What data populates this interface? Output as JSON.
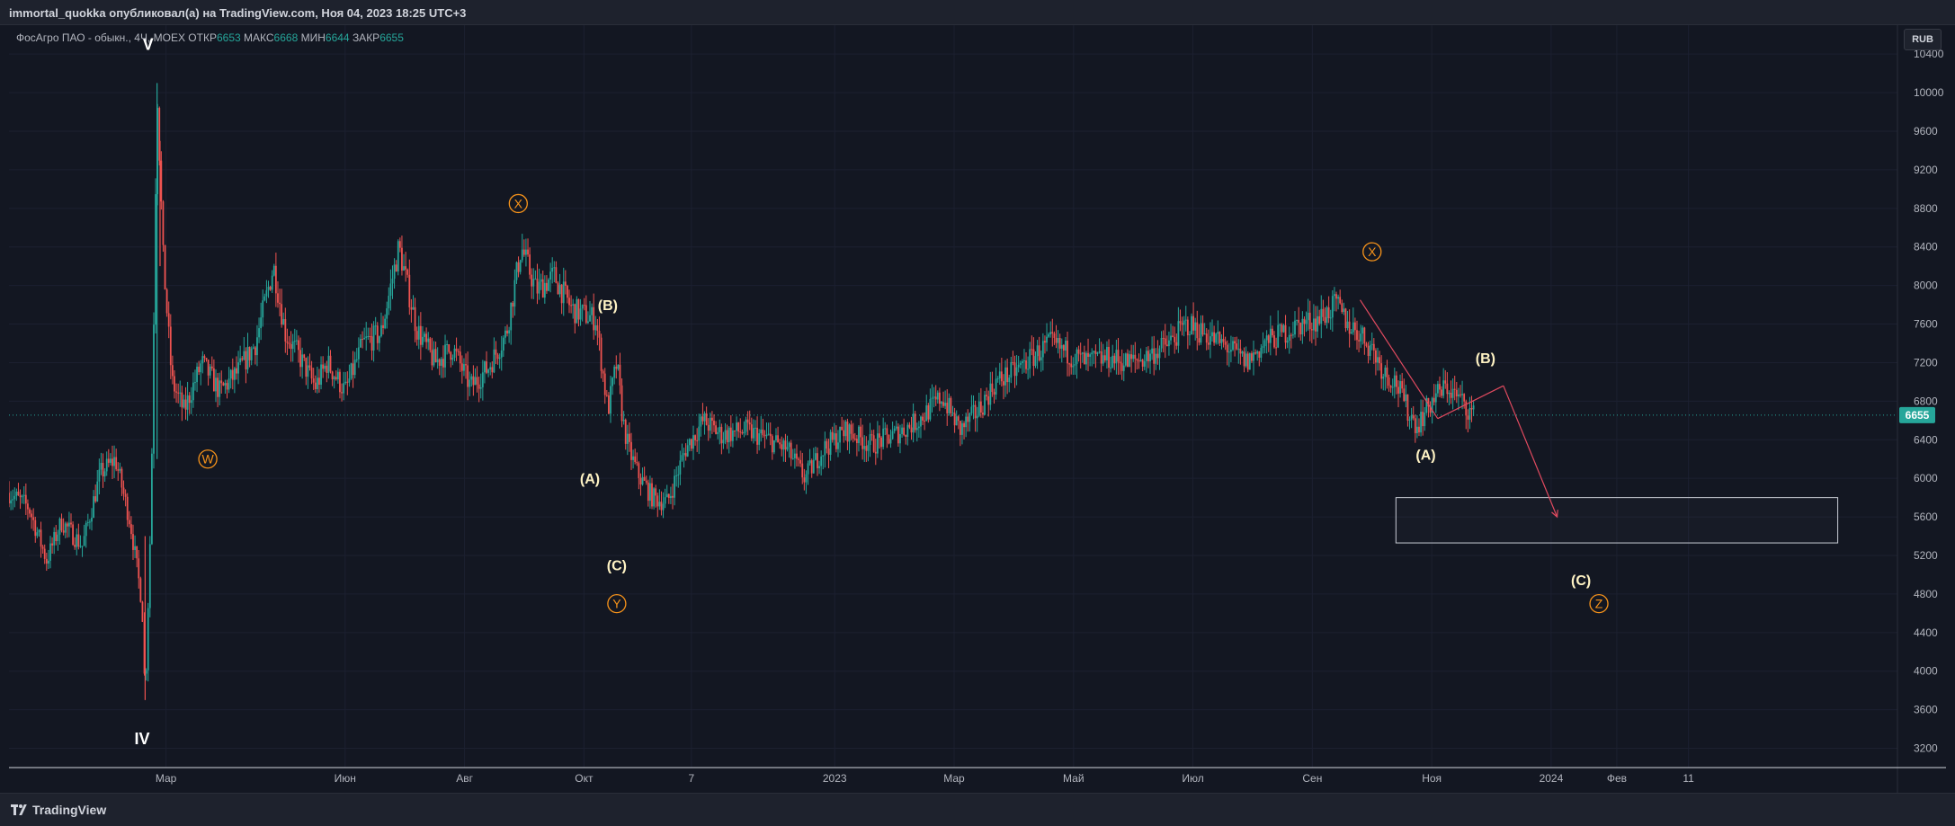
{
  "header": {
    "title": "immortal_quokka опубликовал(а) на TradingView.com, Ноя 04, 2023 18:25 UTC+3"
  },
  "symbol_bar": {
    "name": "ФосАгро ПАО - обыкн., 4Ч, MOEX",
    "open_label": "ОТКР",
    "open": "6653",
    "high_label": "МАКС",
    "high": "6668",
    "low_label": "МИН",
    "low": "6644",
    "close_label": "ЗАКР",
    "close": "6655"
  },
  "currency": "RUB",
  "footer": {
    "brand": "TradingView"
  },
  "colors": {
    "background": "#131722",
    "up": "#26a69a",
    "down": "#ef5350",
    "wave_orange": "#f7931a",
    "trend_red": "#e04a5f"
  },
  "chart_data": {
    "type": "candlestick",
    "y_axis": {
      "ticks": [
        3200,
        3600,
        4000,
        4400,
        4800,
        5200,
        5600,
        6000,
        6400,
        6800,
        7200,
        7600,
        8000,
        8400,
        8800,
        9200,
        9600,
        10000,
        10400
      ],
      "range": [
        3000,
        10700
      ]
    },
    "x_axis": {
      "ticks": [
        {
          "label": "Мар",
          "x": 0.8
        },
        {
          "label": "Июн",
          "x": 3.8
        },
        {
          "label": "Авг",
          "x": 5.8
        },
        {
          "label": "Окт",
          "x": 7.8
        },
        {
          "label": "7",
          "x": 9.6
        },
        {
          "label": "2023",
          "x": 12.0
        },
        {
          "label": "Мар",
          "x": 14.0
        },
        {
          "label": "Май",
          "x": 16.0
        },
        {
          "label": "Июл",
          "x": 18.0
        },
        {
          "label": "Сен",
          "x": 20.0
        },
        {
          "label": "Ноя",
          "x": 22.0
        },
        {
          "label": "2024",
          "x": 24.0
        },
        {
          "label": "Фев",
          "x": 25.1
        },
        {
          "label": "11",
          "x": 26.3
        }
      ],
      "range": [
        -1.83,
        29.8
      ],
      "unit": "months since 2022-01"
    },
    "last_price": 6655,
    "price_path": [
      [
        -1.83,
        5850
      ],
      [
        -1.5,
        5700
      ],
      [
        -1.2,
        5150
      ],
      [
        -0.95,
        5550
      ],
      [
        -0.6,
        5300
      ],
      [
        -0.3,
        6050
      ],
      [
        -0.05,
        6200
      ],
      [
        0.2,
        5550
      ],
      [
        0.4,
        4700
      ],
      [
        0.45,
        3700
      ],
      [
        0.55,
        5700
      ],
      [
        0.65,
        10100
      ],
      [
        0.75,
        8300
      ],
      [
        0.9,
        7000
      ],
      [
        1.1,
        6700
      ],
      [
        1.4,
        7200
      ],
      [
        1.7,
        6900
      ],
      [
        2.0,
        7100
      ],
      [
        2.3,
        7400
      ],
      [
        2.6,
        8200
      ],
      [
        2.8,
        7500
      ],
      [
        3.0,
        7300
      ],
      [
        3.3,
        6950
      ],
      [
        3.5,
        7200
      ],
      [
        3.8,
        6900
      ],
      [
        4.1,
        7400
      ],
      [
        4.4,
        7500
      ],
      [
        4.7,
        8400
      ],
      [
        5.0,
        7550
      ],
      [
        5.3,
        7200
      ],
      [
        5.6,
        7350
      ],
      [
        5.9,
        6950
      ],
      [
        6.2,
        7150
      ],
      [
        6.5,
        7500
      ],
      [
        6.75,
        8400
      ],
      [
        7.0,
        7950
      ],
      [
        7.3,
        8100
      ],
      [
        7.6,
        7750
      ],
      [
        7.8,
        7700
      ],
      [
        8.0,
        7650
      ],
      [
        8.2,
        6700
      ],
      [
        8.35,
        7200
      ],
      [
        8.45,
        6600
      ],
      [
        8.55,
        6300
      ],
      [
        8.7,
        6050
      ],
      [
        8.95,
        5800
      ],
      [
        9.2,
        5750
      ],
      [
        9.5,
        6300
      ],
      [
        9.8,
        6600
      ],
      [
        10.1,
        6450
      ],
      [
        10.5,
        6500
      ],
      [
        10.9,
        6400
      ],
      [
        11.2,
        6300
      ],
      [
        11.5,
        6000
      ],
      [
        11.8,
        6300
      ],
      [
        12.2,
        6500
      ],
      [
        12.6,
        6350
      ],
      [
        13.0,
        6450
      ],
      [
        13.4,
        6600
      ],
      [
        13.8,
        6850
      ],
      [
        14.1,
        6500
      ],
      [
        14.4,
        6700
      ],
      [
        14.7,
        7000
      ],
      [
        15.0,
        7100
      ],
      [
        15.3,
        7250
      ],
      [
        15.6,
        7400
      ],
      [
        15.9,
        7300
      ],
      [
        16.2,
        7200
      ],
      [
        16.6,
        7250
      ],
      [
        16.9,
        7200
      ],
      [
        17.2,
        7250
      ],
      [
        17.6,
        7400
      ],
      [
        17.9,
        7600
      ],
      [
        18.2,
        7500
      ],
      [
        18.6,
        7350
      ],
      [
        18.9,
        7200
      ],
      [
        19.2,
        7400
      ],
      [
        19.5,
        7500
      ],
      [
        19.8,
        7600
      ],
      [
        20.1,
        7650
      ],
      [
        20.4,
        7800
      ],
      [
        20.6,
        7600
      ],
      [
        20.8,
        7500
      ],
      [
        21.0,
        7350
      ],
      [
        21.2,
        7100
      ],
      [
        21.4,
        7000
      ],
      [
        21.6,
        6700
      ],
      [
        21.75,
        6550
      ],
      [
        21.9,
        6700
      ],
      [
        22.05,
        6850
      ],
      [
        22.25,
        6950
      ],
      [
        22.5,
        6800
      ],
      [
        22.7,
        6650
      ]
    ],
    "wave_labels": [
      {
        "text": "V",
        "x": 0.5,
        "y": 10500,
        "style": "white"
      },
      {
        "text": "IV",
        "x": 0.4,
        "y": 3300,
        "style": "white"
      },
      {
        "text": "W",
        "x": 1.5,
        "y": 6200,
        "style": "orange-circle"
      },
      {
        "text": "X",
        "x": 6.7,
        "y": 8850,
        "style": "orange-circle"
      },
      {
        "text": "(B)",
        "x": 8.2,
        "y": 7800,
        "style": "yellow"
      },
      {
        "text": "(A)",
        "x": 7.9,
        "y": 6000,
        "style": "yellow"
      },
      {
        "text": "(C)",
        "x": 8.35,
        "y": 5100,
        "style": "yellow"
      },
      {
        "text": "Y",
        "x": 8.35,
        "y": 4700,
        "style": "orange-circle"
      },
      {
        "text": "X",
        "x": 21.0,
        "y": 8350,
        "style": "orange-circle"
      },
      {
        "text": "(B)",
        "x": 22.9,
        "y": 7250,
        "style": "yellow"
      },
      {
        "text": "(A)",
        "x": 21.9,
        "y": 6250,
        "style": "yellow"
      },
      {
        "text": "(C)",
        "x": 24.5,
        "y": 4950,
        "style": "yellow"
      },
      {
        "text": "Z",
        "x": 24.8,
        "y": 4700,
        "style": "orange-circle"
      }
    ],
    "target_box": {
      "x0": 21.4,
      "x1": 28.8,
      "y0": 5330,
      "y1": 5800
    },
    "trend_lines": [
      [
        [
          20.8,
          7850
        ],
        [
          22.1,
          6620
        ]
      ],
      [
        [
          22.1,
          6620
        ],
        [
          23.2,
          6960
        ]
      ],
      [
        [
          23.2,
          6960
        ],
        [
          24.1,
          5600
        ]
      ]
    ]
  }
}
